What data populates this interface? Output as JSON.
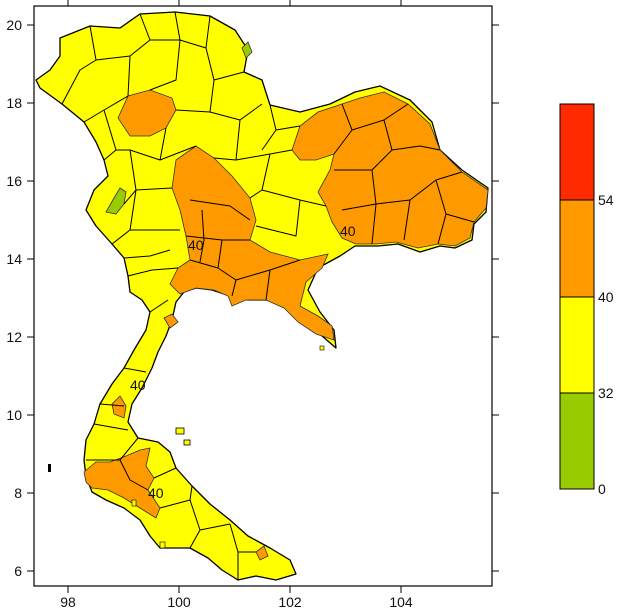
{
  "map": {
    "x_ticks": [
      "98",
      "100",
      "102",
      "104"
    ],
    "y_ticks": [
      "20",
      "18",
      "16",
      "14",
      "12",
      "10",
      "8",
      "6"
    ],
    "contour_labels": [
      "40",
      "40",
      "40",
      "40"
    ]
  },
  "legend": {
    "bins": [
      {
        "from": "54",
        "to": "",
        "color": "#ff2a00"
      },
      {
        "from": "40",
        "to": "54",
        "color": "#ff9900"
      },
      {
        "from": "32",
        "to": "40",
        "color": "#ffff00"
      },
      {
        "from": "0",
        "to": "32",
        "color": "#99cc00"
      }
    ],
    "labels": [
      "54",
      "40",
      "32",
      "0"
    ]
  },
  "colors": {
    "low": "#99cc00",
    "mid": "#ffff00",
    "high": "#ff9900",
    "top": "#ff2a00",
    "ocean": "#ffffff"
  }
}
